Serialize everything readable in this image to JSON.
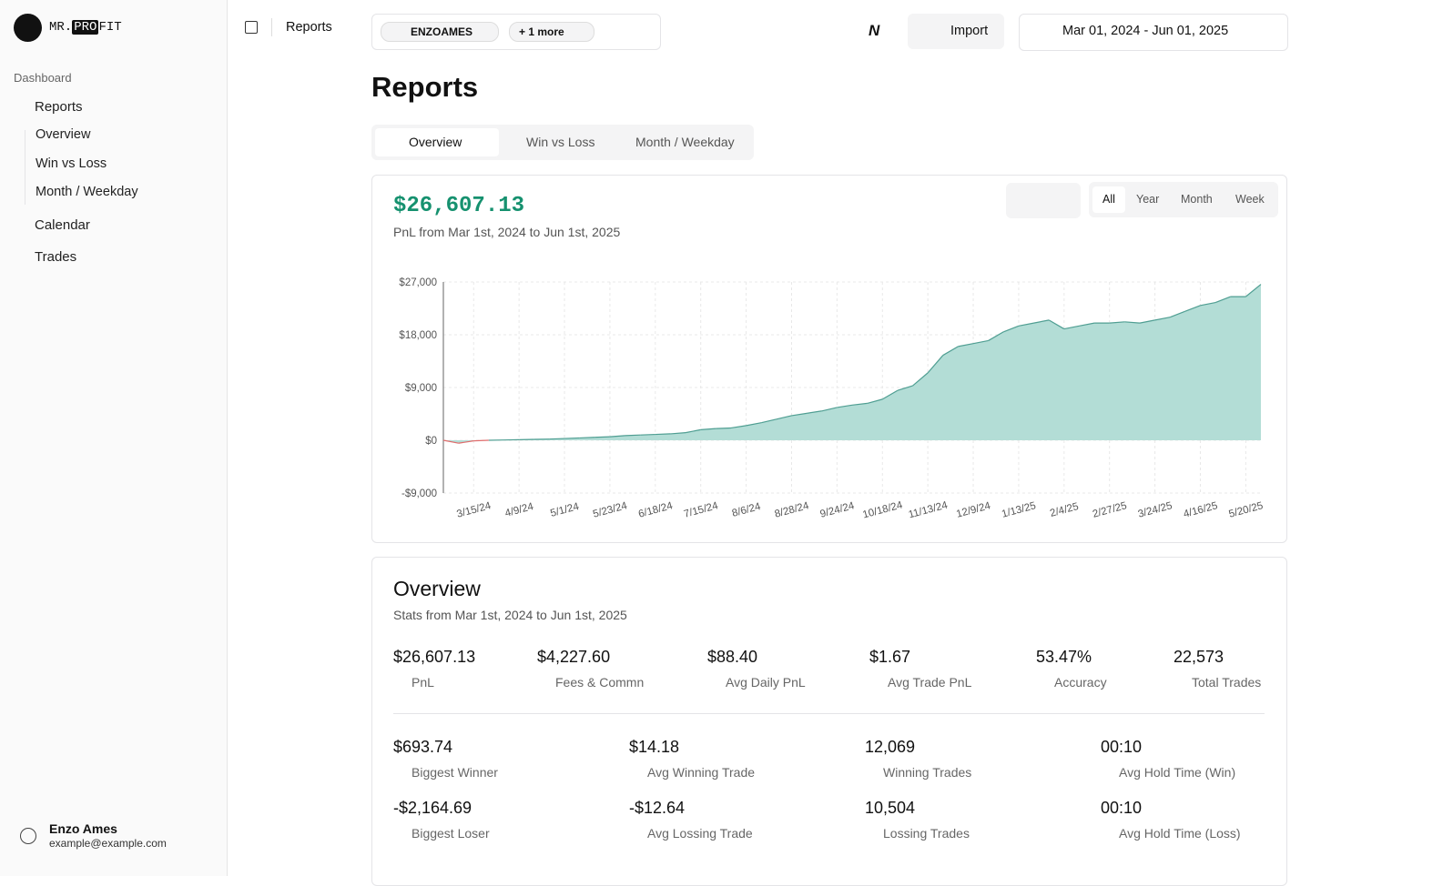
{
  "sidebar": {
    "brand": [
      "MR.",
      "PRO",
      "FIT"
    ],
    "section": "Dashboard",
    "nav": [
      "Reports",
      "Overview",
      "Win vs Loss",
      "Month / Weekday",
      "Calendar",
      "Trades"
    ],
    "user": {
      "name": "Enzo Ames",
      "email": "example@example.com"
    }
  },
  "header": {
    "breadcrumb": "Reports",
    "chips": [
      "ENZOAMES",
      "+ 1 more"
    ],
    "logo": "N",
    "import": "Import",
    "date_range": "Mar 01, 2024 - Jun 01, 2025"
  },
  "page": {
    "title": "Reports",
    "tabs": [
      "Overview",
      "Win vs Loss",
      "Month / Weekday"
    ],
    "total": "$26,607.13",
    "subtitle": "PnL from Mar 1st, 2024 to Jun 1st, 2025",
    "periods": [
      "All",
      "Year",
      "Month",
      "Week"
    ]
  },
  "chart_data": {
    "type": "area",
    "color": "#b3ddd6",
    "line_color": "#4f9e92",
    "negative_color": "#e06c6c",
    "grid": true,
    "categories": [
      null,
      null,
      "3/15/24",
      null,
      null,
      "4/9/24",
      null,
      null,
      "5/1/24",
      null,
      null,
      "5/23/24",
      null,
      null,
      "6/18/24",
      null,
      null,
      "7/15/24",
      null,
      null,
      "8/6/24",
      null,
      null,
      "8/28/24",
      null,
      null,
      "9/24/24",
      null,
      null,
      "10/18/24",
      null,
      null,
      "11/13/24",
      null,
      null,
      "12/9/24",
      null,
      null,
      "1/13/25",
      null,
      null,
      "2/4/25",
      null,
      null,
      "2/27/25",
      null,
      null,
      "3/24/25",
      null,
      null,
      "4/16/25",
      null,
      null,
      "5/20/25",
      null
    ],
    "values": [
      0,
      -500,
      -100,
      0,
      50,
      100,
      150,
      200,
      300,
      400,
      500,
      600,
      800,
      900,
      1000,
      1100,
      1300,
      1800,
      2000,
      2100,
      2500,
      3000,
      3600,
      4200,
      4600,
      5000,
      5600,
      6000,
      6300,
      7000,
      8500,
      9300,
      11500,
      14500,
      16000,
      16500,
      17000,
      18500,
      19500,
      20000,
      20500,
      19000,
      19500,
      20000,
      20000,
      20200,
      20000,
      20500,
      21000,
      22000,
      23000,
      23500,
      24500,
      24500,
      26607.13
    ],
    "ylim": [
      -9000,
      27000
    ],
    "yticks": [
      {
        "value": -9000,
        "label": "-$9,000"
      },
      {
        "value": 0,
        "label": "$0"
      },
      {
        "value": 9000,
        "label": "$9,000"
      },
      {
        "value": 18000,
        "label": "$18,000"
      },
      {
        "value": 27000,
        "label": "$27,000"
      }
    ]
  },
  "overview": {
    "title": "Overview",
    "subtitle": "Stats from Mar 1st, 2024 to Jun 1st, 2025",
    "stats": [
      {
        "value": "$26,607.13",
        "label": "PnL"
      },
      {
        "value": "$4,227.60",
        "label": "Fees & Commn"
      },
      {
        "value": "$88.40",
        "label": "Avg Daily PnL"
      },
      {
        "value": "$1.67",
        "label": "Avg Trade PnL"
      },
      {
        "value": "53.47%",
        "label": "Accuracy"
      },
      {
        "value": "22,573",
        "label": "Total Trades"
      }
    ],
    "details": [
      {
        "value": "$693.74",
        "label": "Biggest Winner"
      },
      {
        "value": "$14.18",
        "label": "Avg Winning Trade"
      },
      {
        "value": "12,069",
        "label": "Winning Trades"
      },
      {
        "value": "00:10",
        "label": "Avg Hold Time (Win)"
      },
      {
        "value": "-$2,164.69",
        "label": "Biggest Loser"
      },
      {
        "value": "-$12.64",
        "label": "Avg Lossing Trade"
      },
      {
        "value": "10,504",
        "label": "Lossing Trades"
      },
      {
        "value": "00:10",
        "label": "Avg Hold Time (Loss)"
      }
    ]
  }
}
